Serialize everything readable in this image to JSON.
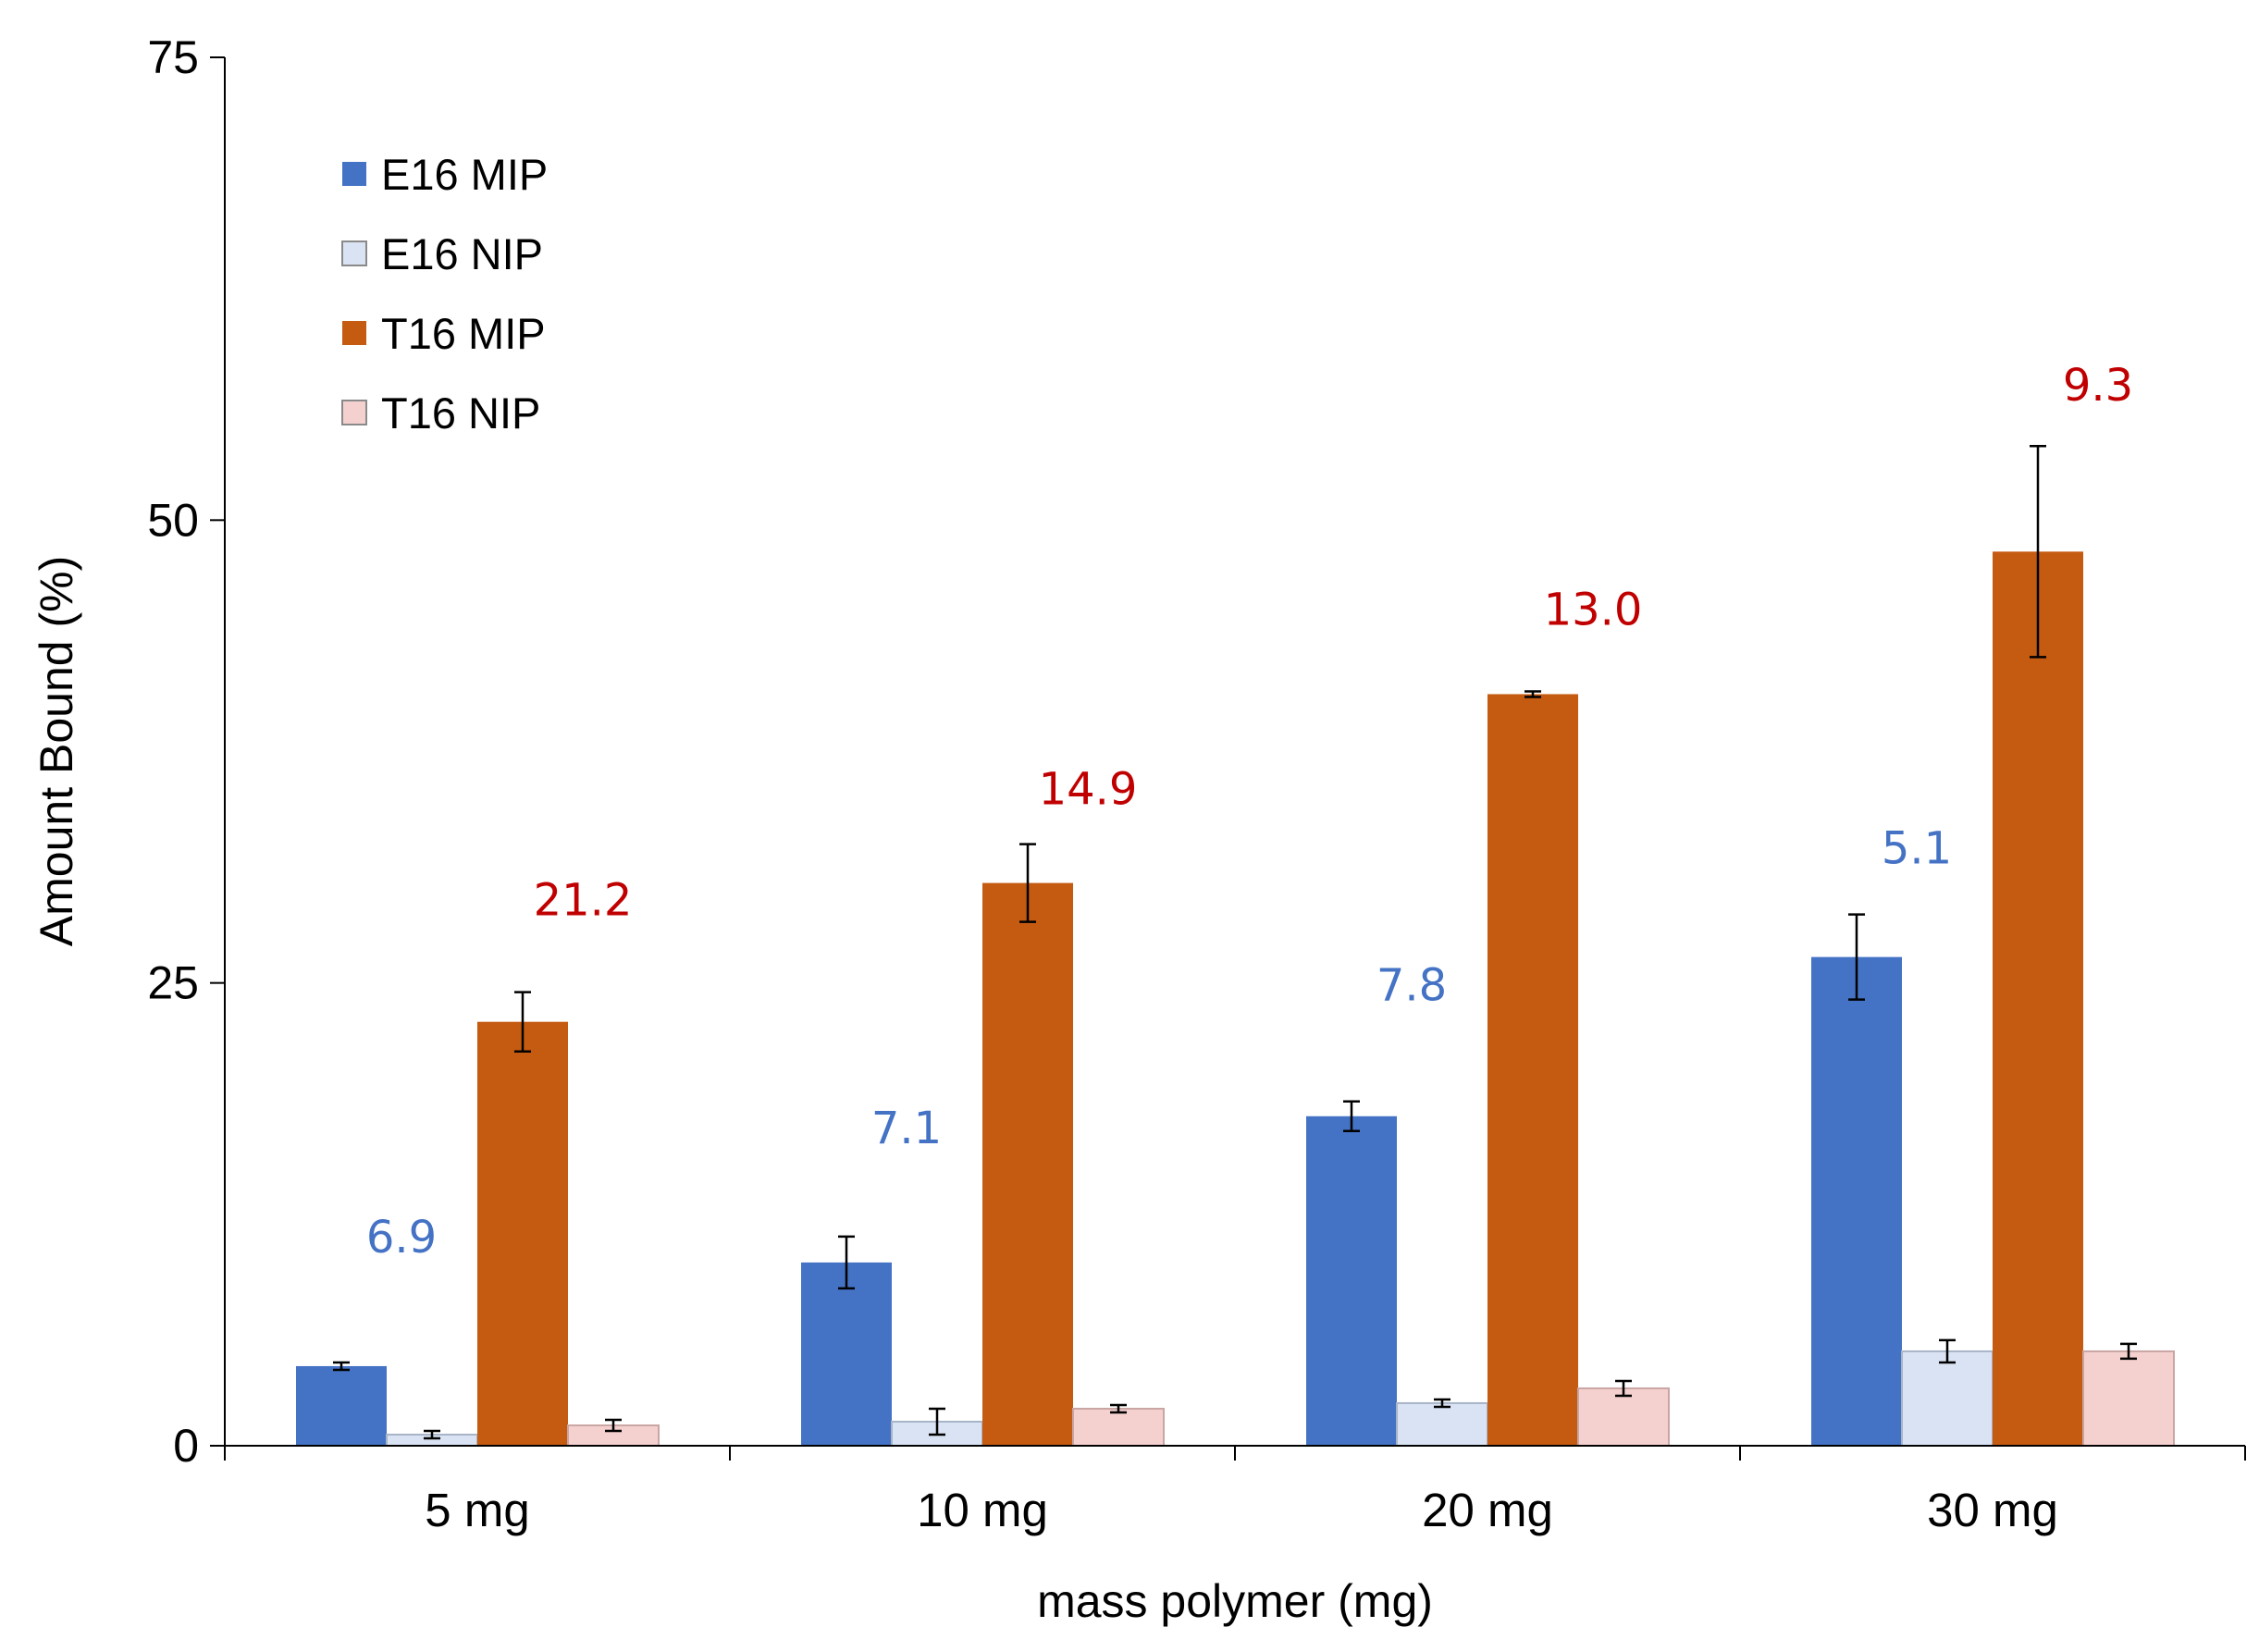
{
  "chart_data": {
    "type": "bar",
    "title": "",
    "xlabel": "mass polymer (mg)",
    "ylabel": "Amount Bound (%)",
    "ylim": [
      0,
      75
    ],
    "yticks": [
      0,
      25,
      50,
      75
    ],
    "grid": false,
    "legend_position": "top-left",
    "categories": [
      "5 mg",
      "10 mg",
      "20 mg",
      "30 mg"
    ],
    "series": [
      {
        "name": "E16 MIP",
        "color": "#4472C4",
        "values": [
          4.3,
          9.9,
          17.8,
          26.4
        ],
        "errors": [
          0.2,
          1.4,
          0.8,
          2.3
        ]
      },
      {
        "name": "E16 NIP",
        "color": "#DAE3F3",
        "values": [
          0.6,
          1.3,
          2.3,
          5.1
        ],
        "errors": [
          0.2,
          0.7,
          0.2,
          0.6
        ]
      },
      {
        "name": "T16 MIP",
        "color": "#C55A11",
        "values": [
          22.9,
          30.4,
          40.6,
          48.3
        ],
        "errors": [
          1.6,
          2.1,
          0.15,
          5.7
        ]
      },
      {
        "name": "T16 NIP",
        "color": "#F4D1CF",
        "values": [
          1.1,
          2.0,
          3.1,
          5.1
        ],
        "errors": [
          0.3,
          0.2,
          0.4,
          0.4
        ]
      }
    ],
    "annotations": [
      {
        "category": "5 mg",
        "series": "E16 MIP",
        "text": "6.9",
        "color": "#4472C4",
        "y": 11.3
      },
      {
        "category": "5 mg",
        "series": "T16 MIP",
        "text": "21.2",
        "color": "#C00000",
        "y": 29.5
      },
      {
        "category": "10 mg",
        "series": "E16 MIP",
        "text": "7.1",
        "color": "#4472C4",
        "y": 17.2
      },
      {
        "category": "10 mg",
        "series": "T16 MIP",
        "text": "14.9",
        "color": "#C00000",
        "y": 35.5
      },
      {
        "category": "20 mg",
        "series": "E16 MIP",
        "text": "7.8",
        "color": "#4472C4",
        "y": 24.9
      },
      {
        "category": "20 mg",
        "series": "T16 MIP",
        "text": "13.0",
        "color": "#C00000",
        "y": 45.2
      },
      {
        "category": "30 mg",
        "series": "E16 MIP",
        "text": "5.1",
        "color": "#4472C4",
        "y": 32.3
      },
      {
        "category": "30 mg",
        "series": "T16 MIP",
        "text": "9.3",
        "color": "#C00000",
        "y": 57.3
      }
    ]
  }
}
